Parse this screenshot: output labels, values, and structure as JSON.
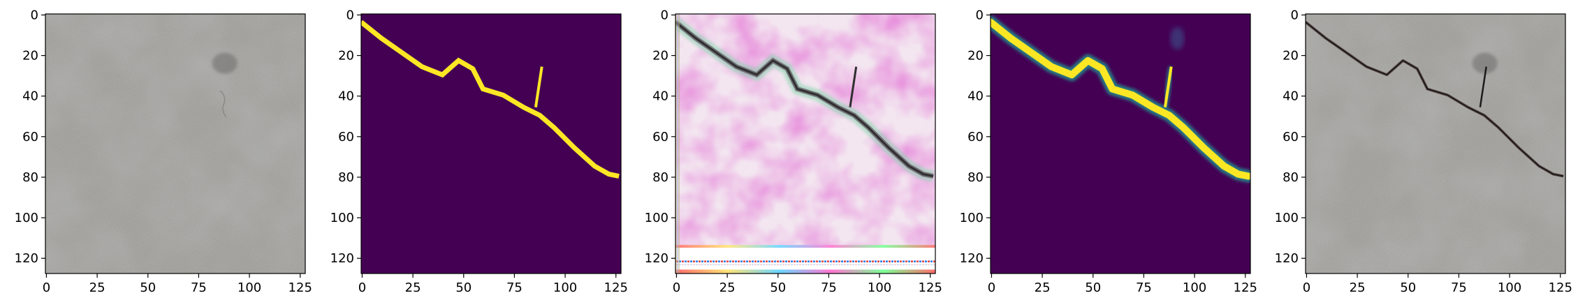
{
  "chart_data": [
    {
      "type": "image",
      "content": "grayscale-like concrete surface photograph with a faint crack",
      "xlim": [
        0,
        128
      ],
      "ylim": [
        128,
        0
      ],
      "xticks": [
        "0",
        "25",
        "50",
        "75",
        "100",
        "125"
      ],
      "yticks": [
        "0",
        "20",
        "40",
        "60",
        "80",
        "100",
        "120"
      ]
    },
    {
      "type": "heatmap",
      "content": "binary ground-truth crack mask, viridis colormap",
      "colormap": {
        "low": "#440154",
        "high": "#fde725"
      },
      "crack_path_x": [
        0,
        10,
        20,
        30,
        40,
        48,
        55,
        60,
        70,
        80,
        88,
        95,
        105,
        115,
        122,
        127
      ],
      "crack_path_y": [
        4,
        12,
        19,
        26,
        30,
        23,
        27,
        37,
        40,
        46,
        50,
        56,
        66,
        75,
        79,
        80
      ],
      "branch_x": [
        86,
        89
      ],
      "branch_y": [
        46,
        26
      ],
      "xlim": [
        0,
        128
      ],
      "ylim": [
        128,
        0
      ],
      "xticks": [
        "0",
        "25",
        "50",
        "75",
        "100",
        "125"
      ],
      "yticks": [
        "0",
        "20",
        "40",
        "60",
        "80",
        "100",
        "120"
      ]
    },
    {
      "type": "image",
      "content": "generated crack image with magenta/white noise artifacts and colored stripes along bottom edge",
      "colors": {
        "tint": "#e88ad8",
        "crack": "#2f2f2f",
        "glow": "#7fd0a8"
      },
      "xlim": [
        0,
        128
      ],
      "ylim": [
        128,
        0
      ],
      "xticks": [
        "0",
        "25",
        "50",
        "75",
        "100",
        "125"
      ],
      "yticks": [
        "0",
        "20",
        "40",
        "60",
        "80",
        "100",
        "120"
      ]
    },
    {
      "type": "heatmap",
      "content": "predicted crack probability map, viridis colormap",
      "colormap": {
        "low": "#440154",
        "mid": "#21918c",
        "high": "#fde725"
      },
      "xlim": [
        0,
        128
      ],
      "ylim": [
        128,
        0
      ],
      "xticks": [
        "0",
        "25",
        "50",
        "75",
        "100",
        "125"
      ],
      "yticks": [
        "0",
        "20",
        "40",
        "60",
        "80",
        "100",
        "120"
      ]
    },
    {
      "type": "image",
      "content": "concrete photograph with crack overlay",
      "xlim": [
        0,
        128
      ],
      "ylim": [
        128,
        0
      ],
      "xticks": [
        "0",
        "25",
        "50",
        "75",
        "100",
        "125"
      ],
      "yticks": [
        "0",
        "20",
        "40",
        "60",
        "80",
        "100",
        "120"
      ]
    }
  ]
}
